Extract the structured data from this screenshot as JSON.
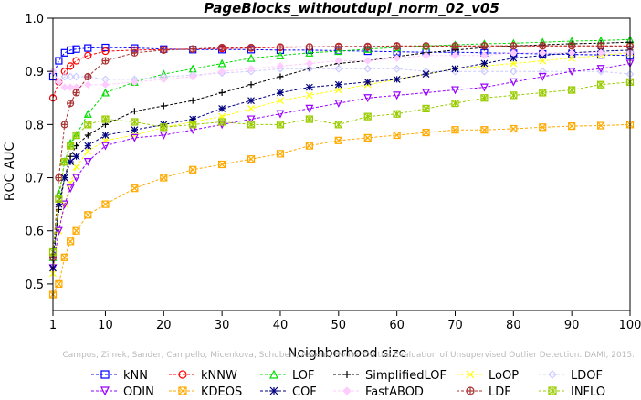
{
  "chart_data": {
    "type": "line",
    "title": "PageBlocks_withoutdupl_norm_02_v05",
    "xlabel": "Neighborhood size",
    "ylabel": "ROC AUC",
    "xlim": [
      1,
      100
    ],
    "ylim": [
      0.45,
      1.0
    ],
    "xticks": [
      1,
      10,
      20,
      30,
      40,
      50,
      60,
      70,
      80,
      90,
      100
    ],
    "yticks": [
      0.5,
      0.6,
      0.7,
      0.8,
      0.9,
      1.0
    ],
    "ytick_labels": [
      "0.5",
      "0.6",
      "0.7",
      "0.8",
      "0.9",
      "1.0"
    ],
    "grid": false,
    "legend_position": "bottom",
    "watermark": "Campos, Zimek, Sander, Campello, Micenkova, Schubert, Assent, Houle: On the Evaluation of Unsupervised Outlier Detection. DAMI, 2015.",
    "x": [
      1,
      2,
      3,
      4,
      5,
      7,
      10,
      15,
      20,
      25,
      30,
      35,
      40,
      45,
      50,
      55,
      60,
      65,
      70,
      75,
      80,
      85,
      90,
      95,
      100
    ],
    "series": [
      {
        "name": "kNN",
        "color": "#0000ff",
        "marker": "square",
        "values": [
          0.89,
          0.92,
          0.935,
          0.94,
          0.942,
          0.944,
          0.945,
          0.944,
          0.942,
          0.941,
          0.941,
          0.941,
          0.94,
          0.94,
          0.939,
          0.938,
          0.937,
          0.936,
          0.936,
          0.935,
          0.934,
          0.933,
          0.932,
          0.931,
          0.93
        ]
      },
      {
        "name": "kNNW",
        "color": "#ff0000",
        "marker": "circle",
        "values": [
          0.85,
          0.88,
          0.9,
          0.91,
          0.92,
          0.93,
          0.938,
          0.94,
          0.941,
          0.942,
          0.943,
          0.944,
          0.945,
          0.946,
          0.946,
          0.946,
          0.947,
          0.947,
          0.947,
          0.948,
          0.948,
          0.948,
          0.948,
          0.948,
          0.948
        ]
      },
      {
        "name": "LOF",
        "color": "#00dd00",
        "marker": "triangle",
        "values": [
          0.55,
          0.67,
          0.73,
          0.765,
          0.78,
          0.82,
          0.86,
          0.88,
          0.895,
          0.905,
          0.915,
          0.925,
          0.93,
          0.935,
          0.938,
          0.942,
          0.945,
          0.948,
          0.95,
          0.952,
          0.953,
          0.955,
          0.957,
          0.958,
          0.96
        ]
      },
      {
        "name": "SimplifiedLOF",
        "color": "#000000",
        "marker": "plus",
        "values": [
          0.55,
          0.64,
          0.7,
          0.74,
          0.76,
          0.78,
          0.8,
          0.825,
          0.835,
          0.845,
          0.86,
          0.875,
          0.89,
          0.905,
          0.915,
          0.92,
          0.928,
          0.935,
          0.94,
          0.945,
          0.948,
          0.95,
          0.952,
          0.953,
          0.955
        ]
      },
      {
        "name": "LoOP",
        "color": "#ffff00",
        "marker": "x",
        "values": [
          0.52,
          0.6,
          0.65,
          0.69,
          0.72,
          0.75,
          0.77,
          0.78,
          0.795,
          0.805,
          0.815,
          0.83,
          0.845,
          0.855,
          0.865,
          0.875,
          0.885,
          0.895,
          0.905,
          0.91,
          0.915,
          0.92,
          0.925,
          0.93,
          0.935
        ]
      },
      {
        "name": "LDOF",
        "color": "#ccccff",
        "marker": "diamond",
        "values": [
          0.9,
          0.88,
          0.89,
          0.89,
          0.89,
          0.89,
          0.885,
          0.885,
          0.89,
          0.893,
          0.897,
          0.9,
          0.905,
          0.905,
          0.905,
          0.905,
          0.905,
          0.9,
          0.9,
          0.9,
          0.9,
          0.9,
          0.9,
          0.9,
          0.895
        ]
      },
      {
        "name": "ODIN",
        "color": "#9900ff",
        "marker": "triangle-down",
        "values": [
          0.53,
          0.6,
          0.65,
          0.68,
          0.7,
          0.73,
          0.76,
          0.775,
          0.78,
          0.79,
          0.8,
          0.81,
          0.82,
          0.83,
          0.84,
          0.85,
          0.855,
          0.86,
          0.865,
          0.87,
          0.88,
          0.89,
          0.9,
          0.905,
          0.915
        ]
      },
      {
        "name": "KDEOS",
        "color": "#ffaa00",
        "marker": "square-x",
        "values": [
          0.48,
          0.5,
          0.55,
          0.58,
          0.6,
          0.63,
          0.65,
          0.68,
          0.7,
          0.715,
          0.725,
          0.735,
          0.745,
          0.76,
          0.77,
          0.775,
          0.78,
          0.785,
          0.79,
          0.79,
          0.792,
          0.795,
          0.797,
          0.798,
          0.8
        ]
      },
      {
        "name": "COF",
        "color": "#000080",
        "marker": "star",
        "values": [
          0.53,
          0.65,
          0.7,
          0.73,
          0.74,
          0.76,
          0.78,
          0.79,
          0.8,
          0.81,
          0.83,
          0.845,
          0.86,
          0.87,
          0.875,
          0.88,
          0.885,
          0.895,
          0.905,
          0.915,
          0.925,
          0.93,
          0.935,
          0.938,
          0.94
        ]
      },
      {
        "name": "FastABOD",
        "color": "#ffccff",
        "marker": "diamond-filled",
        "values": [
          0.9,
          0.88,
          0.87,
          0.87,
          0.87,
          0.875,
          0.875,
          0.88,
          0.885,
          0.89,
          0.9,
          0.905,
          0.91,
          0.915,
          0.92,
          0.92,
          0.925,
          0.93,
          0.93,
          0.93,
          0.935,
          0.935,
          0.935,
          0.935,
          0.935
        ]
      },
      {
        "name": "LDF",
        "color": "#aa3333",
        "marker": "circle-plus",
        "values": [
          0.55,
          0.7,
          0.8,
          0.84,
          0.86,
          0.89,
          0.92,
          0.935,
          0.94,
          0.942,
          0.945,
          0.945,
          0.946,
          0.946,
          0.947,
          0.947,
          0.948,
          0.948,
          0.948,
          0.948,
          0.948,
          0.948,
          0.948,
          0.948,
          0.947
        ]
      },
      {
        "name": "INFLO",
        "color": "#99cc00",
        "marker": "square-star",
        "values": [
          0.56,
          0.66,
          0.73,
          0.76,
          0.78,
          0.8,
          0.81,
          0.805,
          0.795,
          0.8,
          0.805,
          0.8,
          0.8,
          0.81,
          0.8,
          0.815,
          0.82,
          0.83,
          0.84,
          0.85,
          0.855,
          0.86,
          0.865,
          0.875,
          0.88
        ]
      }
    ]
  }
}
